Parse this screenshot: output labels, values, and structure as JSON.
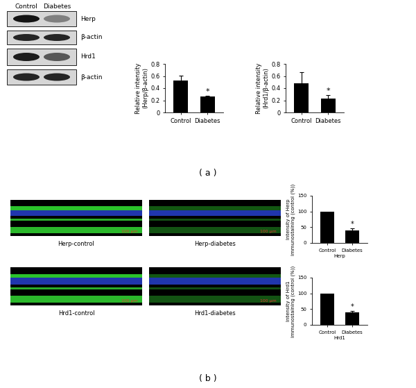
{
  "chart_data": [
    {
      "type": "bar",
      "categories": [
        "Control",
        "Diabetes"
      ],
      "values": [
        0.53,
        0.26
      ],
      "error": [
        0.08,
        0.015
      ],
      "ylabel": "Relative intensity\n(Herp/β-actin)",
      "ylim": [
        0,
        0.8
      ],
      "yticks": [
        0,
        0.2,
        0.4,
        0.6,
        0.8
      ],
      "color": "#000000",
      "annotations": [
        {
          "category": "Diabetes",
          "text": "*"
        }
      ]
    },
    {
      "type": "bar",
      "categories": [
        "Control",
        "Diabetes"
      ],
      "values": [
        0.48,
        0.23
      ],
      "error": [
        0.18,
        0.06
      ],
      "ylabel": "Relative intensity\n(Hrd1/β-actin)",
      "ylim": [
        0,
        0.8
      ],
      "yticks": [
        0,
        0.2,
        0.4,
        0.6,
        0.8
      ],
      "color": "#000000",
      "annotations": [
        {
          "category": "Diabetes",
          "text": "*"
        }
      ]
    },
    {
      "type": "bar",
      "categories": [
        "Control",
        "Diabetes"
      ],
      "values": [
        100,
        40
      ],
      "error": [
        null,
        6
      ],
      "ylabel": "Intensity of Herp\nimmunostaining (control (%))",
      "xlabel": "Herp",
      "ylim": [
        0,
        150
      ],
      "yticks": [
        0,
        50,
        100,
        150
      ],
      "color": "#000000",
      "annotations": [
        {
          "category": "Diabetes",
          "text": "*"
        }
      ]
    },
    {
      "type": "bar",
      "categories": [
        "Control",
        "Diabetes"
      ],
      "values": [
        100,
        40
      ],
      "error": [
        null,
        5
      ],
      "ylabel": "Intensity of Hrd1\nimmunostaining (control (%))",
      "xlabel": "Hrd1",
      "ylim": [
        0,
        150
      ],
      "yticks": [
        0,
        50,
        100,
        150
      ],
      "color": "#000000",
      "annotations": [
        {
          "category": "Diabetes",
          "text": "*"
        }
      ]
    }
  ],
  "blots": {
    "lanes": [
      "Control",
      "Diabetes"
    ],
    "rows": [
      "Herp",
      "β-actin",
      "Hrd1",
      "β-actin"
    ]
  },
  "micrographs": {
    "labels": [
      "Herp-control",
      "Herp-diabetes",
      "Hrd1-control",
      "Hrd1-diabetes"
    ],
    "scale_bar": "100 μm"
  },
  "panel_labels": [
    "( a )",
    "( b )"
  ]
}
